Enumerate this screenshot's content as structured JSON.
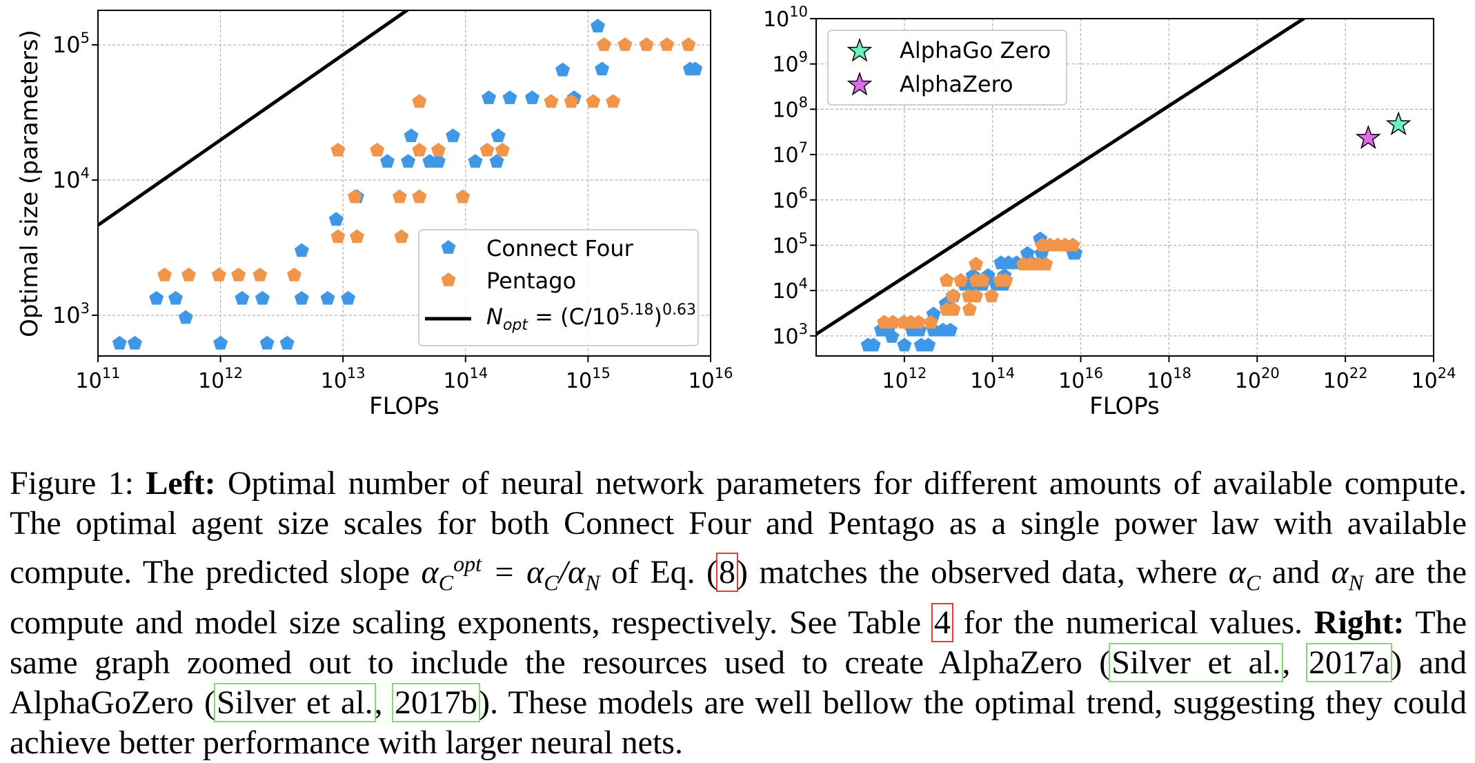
{
  "chart_data": [
    {
      "type": "scatter",
      "panel": "left",
      "xlabel": "FLOPs",
      "ylabel": "Optimal size (parameters)",
      "xscale": "log",
      "yscale": "log",
      "xlim": [
        100000000000.0,
        1e+16
      ],
      "ylim": [
        500,
        180000
      ],
      "x_ticks": [
        {
          "base": "10",
          "exp": "11",
          "value": 100000000000.0
        },
        {
          "base": "10",
          "exp": "12",
          "value": 1000000000000.0
        },
        {
          "base": "10",
          "exp": "13",
          "value": 10000000000000.0
        },
        {
          "base": "10",
          "exp": "14",
          "value": 100000000000000.0
        },
        {
          "base": "10",
          "exp": "15",
          "value": 1000000000000000.0
        },
        {
          "base": "10",
          "exp": "16",
          "value": 1e+16
        }
      ],
      "y_ticks": [
        {
          "base": "10",
          "exp": "3",
          "value": 1000
        },
        {
          "base": "10",
          "exp": "4",
          "value": 10000
        },
        {
          "base": "10",
          "exp": "5",
          "value": 100000
        }
      ],
      "grid": true,
      "legend_position": "lower-right",
      "series": [
        {
          "name": "Connect Four",
          "marker": "pentagon",
          "color": "#3f97e8",
          "points": [
            [
              150000000000.0,
              620
            ],
            [
              200000000000.0,
              620
            ],
            [
              300000000000.0,
              1330
            ],
            [
              430000000000.0,
              1330
            ],
            [
              520000000000.0,
              960
            ],
            [
              1000000000000.0,
              620
            ],
            [
              1500000000000.0,
              1330
            ],
            [
              2200000000000.0,
              1330
            ],
            [
              2400000000000.0,
              620
            ],
            [
              3500000000000.0,
              620
            ],
            [
              4600000000000.0,
              3000
            ],
            [
              4600000000000.0,
              1330
            ],
            [
              7500000000000.0,
              1330
            ],
            [
              8800000000000.0,
              5100
            ],
            [
              11000000000000.0,
              1330
            ],
            [
              13000000000000.0,
              7500
            ],
            [
              23000000000000.0,
              13700
            ],
            [
              34000000000000.0,
              13700
            ],
            [
              36000000000000.0,
              21200
            ],
            [
              51000000000000.0,
              13700
            ],
            [
              60000000000000.0,
              13700
            ],
            [
              79000000000000.0,
              21200
            ],
            [
              120000000000000.0,
              13700
            ],
            [
              155000000000000.0,
              40500
            ],
            [
              180000000000000.0,
              13700
            ],
            [
              185000000000000.0,
              21200
            ],
            [
              230000000000000.0,
              40500
            ],
            [
              350000000000000.0,
              40500
            ],
            [
              620000000000000.0,
              65000
            ],
            [
              770000000000000.0,
              40500
            ],
            [
              1200000000000000.0,
              137000
            ],
            [
              1300000000000000.0,
              66000
            ],
            [
              6800000000000000.0,
              66000
            ],
            [
              7500000000000000.0,
              66000
            ]
          ]
        },
        {
          "name": "Pentago",
          "marker": "pentagon",
          "color": "#f0954a",
          "points": [
            [
              350000000000.0,
              1980
            ],
            [
              550000000000.0,
              1980
            ],
            [
              970000000000.0,
              1980
            ],
            [
              1400000000000.0,
              1980
            ],
            [
              2100000000000.0,
              1980
            ],
            [
              4000000000000.0,
              1980
            ],
            [
              9100000000000.0,
              16600
            ],
            [
              9100000000000.0,
              3800
            ],
            [
              12500000000000.0,
              7500
            ],
            [
              13000000000000.0,
              3800
            ],
            [
              19000000000000.0,
              16600
            ],
            [
              29000000000000.0,
              7500
            ],
            [
              30000000000000.0,
              3800
            ],
            [
              42000000000000.0,
              38000
            ],
            [
              42000000000000.0,
              16600
            ],
            [
              42000000000000.0,
              7500
            ],
            [
              60000000000000.0,
              16600
            ],
            [
              95000000000000.0,
              7500
            ],
            [
              150000000000000.0,
              16600
            ],
            [
              200000000000000.0,
              16600
            ],
            [
              500000000000000.0,
              38000
            ],
            [
              730000000000000.0,
              38000
            ],
            [
              1100000000000000.0,
              38000
            ],
            [
              1350000000000000.0,
              100000
            ],
            [
              1600000000000000.0,
              38000
            ],
            [
              2000000000000000.0,
              100000
            ],
            [
              3000000000000000.0,
              100000
            ],
            [
              4400000000000000.0,
              100000
            ],
            [
              6600000000000000.0,
              100000
            ]
          ]
        }
      ],
      "fit_line": {
        "label_main": "N",
        "label_sub": "opt",
        "label_mid": " = (C/10",
        "label_exp1": "5.18",
        "label_close": ")",
        "label_exp2": "0.63",
        "x0": 5.18,
        "slope": 0.63,
        "color": "#000000"
      }
    },
    {
      "type": "scatter",
      "panel": "right",
      "xlabel": "FLOPs",
      "ylabel": "",
      "xscale": "log",
      "yscale": "log",
      "xlim": [
        10000000000.0,
        1e+24
      ],
      "ylim": [
        360,
        10000000000.0
      ],
      "x_ticks": [
        {
          "base": "10",
          "exp": "12",
          "value": 1000000000000.0
        },
        {
          "base": "10",
          "exp": "14",
          "value": 100000000000000.0
        },
        {
          "base": "10",
          "exp": "16",
          "value": 1e+16
        },
        {
          "base": "10",
          "exp": "18",
          "value": 1e+18
        },
        {
          "base": "10",
          "exp": "20",
          "value": 1e+20
        },
        {
          "base": "10",
          "exp": "22",
          "value": 1e+22
        },
        {
          "base": "10",
          "exp": "24",
          "value": 1e+24
        }
      ],
      "y_ticks": [
        {
          "base": "10",
          "exp": "3",
          "value": 1000.0
        },
        {
          "base": "10",
          "exp": "4",
          "value": 10000.0
        },
        {
          "base": "10",
          "exp": "5",
          "value": 100000.0
        },
        {
          "base": "10",
          "exp": "6",
          "value": 1000000.0
        },
        {
          "base": "10",
          "exp": "7",
          "value": 10000000.0
        },
        {
          "base": "10",
          "exp": "8",
          "value": 100000000.0
        },
        {
          "base": "10",
          "exp": "9",
          "value": 1000000000.0
        },
        {
          "base": "10",
          "exp": "10",
          "value": 10000000000.0
        }
      ],
      "grid": true,
      "legend_position": "upper-left",
      "stars": [
        {
          "name": "AlphaGo Zero",
          "x": 1.6e+23,
          "y": 46000000.0,
          "color": "#6ef0bc"
        },
        {
          "name": "AlphaZero",
          "x": 3.3e+22,
          "y": 23000000.0,
          "color": "#dd6ee8"
        }
      ]
    }
  ],
  "caption": {
    "fig_label": "Figure 1:",
    "left_label": "Left:",
    "text1": " Optimal number of neural network parameters for different amounts of available compute. The optimal agent size scales for both Connect Four and Pentago as a single power law with available compute. The predicted slope ",
    "alpha": "α",
    "sub_c": "C",
    "sup_opt": "opt",
    "eq_mid": " = α",
    "sub_c2": "C",
    "slash": "/α",
    "sub_n": "N",
    "text2": " of Eq. (",
    "eq_ref": "8",
    "text3": ") matches the observed data, where ",
    "alpha2": "α",
    "sub_c3": "C",
    "text4": " and ",
    "alpha3": "α",
    "sub_n2": "N",
    "text5": " are the compute and model size scaling exponents, respectively. See Table ",
    "table_ref": "4",
    "text6": " for the numerical values. ",
    "right_label": "Right:",
    "text7": " The same graph zoomed out to include the resources used to create AlphaZero (",
    "cite1_author": "Silver et al.",
    "cite1_year": "2017a",
    "text8": ") and AlphaGoZero (",
    "cite2_author": "Silver et al.",
    "cite2_year": "2017b",
    "text9": "). These models are well bellow the optimal trend, suggesting they could achieve better performance with larger neural nets."
  }
}
